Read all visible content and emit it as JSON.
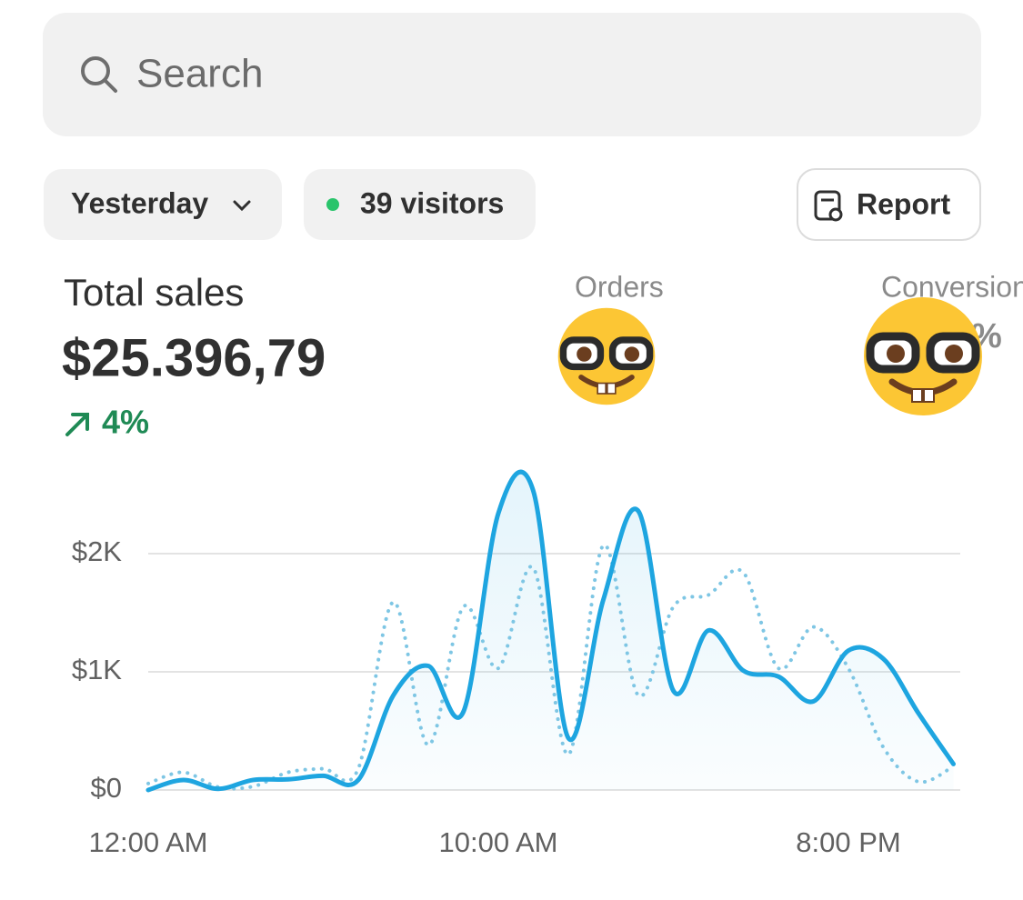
{
  "search": {
    "placeholder": "Search"
  },
  "filters": {
    "date": "Yesterday",
    "visitors": "39 visitors",
    "report": "Report"
  },
  "metrics": {
    "total_sales": {
      "label": "Total sales",
      "value": "$25.396,79",
      "change": "4%"
    },
    "orders": {
      "label": "Orders"
    },
    "conversion": {
      "label": "Conversion",
      "value": "%"
    }
  },
  "chart_data": {
    "type": "line",
    "categories": [
      "12:00 AM",
      null,
      null,
      null,
      null,
      null,
      null,
      null,
      null,
      null,
      "10:00 AM",
      null,
      null,
      null,
      null,
      null,
      null,
      null,
      null,
      null,
      "8:00 PM",
      null,
      null,
      null
    ],
    "series": [
      {
        "color": "#1ea5e0",
        "line_style": "solid",
        "area": true,
        "values": [
          0,
          85,
          10,
          85,
          90,
          120,
          85,
          800,
          1050,
          660,
          2340,
          2530,
          440,
          1610,
          2360,
          840,
          1350,
          1010,
          960,
          750,
          1180,
          1110,
          650,
          220
        ]
      },
      {
        "color": "#7ec6e4",
        "line_style": "dotted",
        "area": false,
        "values": [
          55,
          150,
          25,
          30,
          150,
          180,
          180,
          1590,
          380,
          1550,
          1030,
          1880,
          300,
          2070,
          800,
          1550,
          1650,
          1840,
          1030,
          1380,
          1030,
          360,
          70,
          200
        ]
      }
    ],
    "ylim": [
      0,
      2600
    ],
    "yticks": [
      {
        "value": 0,
        "label": "$0"
      },
      {
        "value": 1000,
        "label": "$1K"
      },
      {
        "value": 2000,
        "label": "$2K"
      }
    ],
    "grid": true
  }
}
